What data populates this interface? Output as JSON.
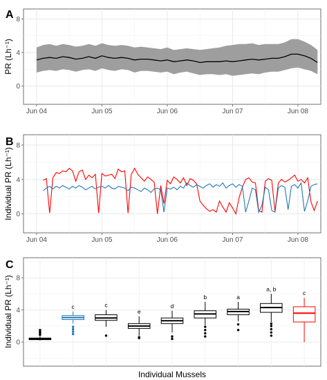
{
  "chart_data": [
    {
      "panel_label": "A",
      "type": "area",
      "ylabel": "PR (Lh⁻¹)",
      "ylim": [
        -2.2,
        9.2
      ],
      "yticks": [
        0,
        4,
        8
      ],
      "xticks": [
        "Jun 04",
        "Jun 05",
        "Jun 06",
        "Jun 07",
        "Jun 08"
      ],
      "xlim": [
        -0.2,
        4.35
      ],
      "grid": true,
      "series": [
        {
          "kind": "band",
          "color": "#999999",
          "x": [
            0,
            0.1,
            0.2,
            0.3,
            0.4,
            0.5,
            0.6,
            0.7,
            0.8,
            0.9,
            1.0,
            1.1,
            1.2,
            1.3,
            1.4,
            1.5,
            1.6,
            1.7,
            1.8,
            1.9,
            2.0,
            2.1,
            2.2,
            2.3,
            2.4,
            2.5,
            2.6,
            2.7,
            2.8,
            2.9,
            3.0,
            3.1,
            3.2,
            3.3,
            3.4,
            3.5,
            3.6,
            3.7,
            3.8,
            3.9,
            4.0,
            4.1,
            4.2,
            4.3
          ],
          "lower": [
            1.6,
            1.8,
            1.9,
            1.8,
            2.0,
            1.9,
            1.7,
            1.9,
            2.0,
            1.8,
            2.1,
            1.9,
            1.8,
            2.0,
            1.9,
            1.6,
            1.8,
            1.8,
            1.7,
            1.6,
            1.7,
            1.4,
            1.6,
            1.7,
            1.5,
            1.3,
            1.4,
            1.4,
            1.3,
            1.4,
            1.2,
            1.3,
            1.4,
            1.5,
            1.4,
            1.6,
            1.7,
            1.7,
            1.9,
            2.1,
            2.2,
            2.0,
            1.8,
            1.4
          ],
          "upper": [
            4.6,
            4.9,
            5.0,
            4.8,
            5.0,
            4.9,
            4.7,
            4.8,
            5.0,
            4.8,
            5.1,
            4.9,
            4.8,
            4.9,
            4.8,
            4.6,
            4.7,
            4.6,
            4.5,
            4.4,
            4.6,
            4.3,
            4.4,
            4.5,
            4.4,
            4.3,
            4.4,
            4.5,
            4.6,
            4.8,
            4.9,
            5.0,
            5.0,
            5.1,
            4.9,
            5.0,
            5.0,
            5.0,
            5.2,
            5.6,
            5.6,
            5.3,
            4.9,
            4.3
          ]
        },
        {
          "kind": "line",
          "color": "#000000",
          "x": [
            0,
            0.1,
            0.2,
            0.3,
            0.4,
            0.5,
            0.6,
            0.7,
            0.8,
            0.9,
            1.0,
            1.1,
            1.2,
            1.3,
            1.4,
            1.5,
            1.6,
            1.7,
            1.8,
            1.9,
            2.0,
            2.1,
            2.2,
            2.3,
            2.4,
            2.5,
            2.6,
            2.7,
            2.8,
            2.9,
            3.0,
            3.1,
            3.2,
            3.3,
            3.4,
            3.5,
            3.6,
            3.7,
            3.8,
            3.9,
            4.0,
            4.1,
            4.2,
            4.3
          ],
          "y": [
            3.1,
            3.3,
            3.4,
            3.3,
            3.5,
            3.4,
            3.2,
            3.3,
            3.5,
            3.3,
            3.6,
            3.4,
            3.3,
            3.4,
            3.3,
            3.1,
            3.2,
            3.2,
            3.1,
            3.0,
            3.1,
            2.9,
            3.0,
            3.1,
            3.0,
            2.8,
            2.9,
            2.9,
            2.9,
            3.0,
            2.9,
            3.0,
            3.1,
            3.2,
            3.1,
            3.2,
            3.3,
            3.3,
            3.5,
            3.8,
            3.8,
            3.6,
            3.3,
            2.8
          ]
        }
      ]
    },
    {
      "panel_label": "B",
      "type": "line",
      "ylabel": "Individual PR (Lh⁻¹)",
      "ylim": [
        -2.2,
        9.2
      ],
      "yticks": [
        0,
        4,
        8
      ],
      "xticks": [
        "Jun 04",
        "Jun 05",
        "Jun 06",
        "Jun 07",
        "Jun 08"
      ],
      "xlim": [
        -0.2,
        4.35
      ],
      "grid": true,
      "series": [
        {
          "color": "#ff0000",
          "x": [
            0.1,
            0.15,
            0.2,
            0.25,
            0.3,
            0.35,
            0.4,
            0.45,
            0.5,
            0.55,
            0.6,
            0.65,
            0.7,
            0.75,
            0.8,
            0.85,
            0.9,
            0.95,
            1.0,
            1.05,
            1.1,
            1.15,
            1.2,
            1.25,
            1.3,
            1.35,
            1.4,
            1.45,
            1.5,
            1.55,
            1.6,
            1.65,
            1.7,
            1.75,
            1.8,
            1.85,
            1.9,
            1.95,
            2.0,
            2.05,
            2.1,
            2.15,
            2.2,
            2.25,
            2.3,
            2.35,
            2.4,
            2.45,
            2.5,
            2.55,
            2.6,
            2.65,
            2.7,
            2.75,
            2.8,
            2.85,
            2.9,
            2.95,
            3.0,
            3.05,
            3.1,
            3.15,
            3.2,
            3.25,
            3.3,
            3.35,
            3.4,
            3.45,
            3.5,
            3.55,
            3.6,
            3.65,
            3.7,
            3.75,
            3.8,
            3.85,
            3.9,
            3.95,
            4.0,
            4.05,
            4.1,
            4.15,
            4.2,
            4.25,
            4.3
          ],
          "y": [
            3.9,
            4.1,
            0.1,
            4.2,
            4.8,
            4.7,
            5.0,
            4.9,
            5.3,
            5.0,
            3.8,
            4.9,
            5.1,
            4.0,
            4.5,
            4.2,
            4.6,
            0.1,
            4.7,
            4.4,
            4.5,
            4.6,
            4.1,
            5.2,
            4.9,
            5.0,
            0.1,
            4.6,
            5.3,
            4.6,
            4.2,
            3.8,
            4.3,
            4.0,
            3.7,
            0.0,
            3.3,
            1.2,
            3.9,
            3.5,
            4.3,
            4.0,
            3.6,
            4.2,
            3.3,
            4.1,
            3.9,
            3.5,
            1.5,
            1.0,
            0.6,
            0.3,
            0.5,
            0.2,
            1.5,
            0.8,
            0.2,
            1.3,
            0.7,
            0.0,
            1.9,
            3.1,
            4.0,
            4.2,
            3.7,
            3.6,
            0.4,
            0.2,
            3.8,
            4.1,
            3.9,
            0.3,
            3.6,
            4.0,
            3.7,
            3.9,
            4.2,
            4.5,
            3.8,
            4.0,
            3.6,
            4.2,
            1.4,
            0.4,
            1.5
          ]
        },
        {
          "color": "#1f77b4",
          "x": [
            0.1,
            0.15,
            0.2,
            0.25,
            0.3,
            0.35,
            0.4,
            0.45,
            0.5,
            0.55,
            0.6,
            0.65,
            0.7,
            0.75,
            0.8,
            0.85,
            0.9,
            0.95,
            1.0,
            1.05,
            1.1,
            1.15,
            1.2,
            1.25,
            1.3,
            1.35,
            1.4,
            1.45,
            1.5,
            1.55,
            1.6,
            1.65,
            1.7,
            1.75,
            1.8,
            1.85,
            1.9,
            1.95,
            2.0,
            2.05,
            2.1,
            2.15,
            2.2,
            2.25,
            2.3,
            2.35,
            2.4,
            2.45,
            2.5,
            2.55,
            2.6,
            2.65,
            2.7,
            2.75,
            2.8,
            2.85,
            2.9,
            2.95,
            3.0,
            3.05,
            3.1,
            3.15,
            3.2,
            3.25,
            3.3,
            3.35,
            3.4,
            3.45,
            3.5,
            3.55,
            3.6,
            3.65,
            3.7,
            3.75,
            3.8,
            3.85,
            3.9,
            3.95,
            4.0,
            4.05,
            4.1,
            4.15,
            4.2,
            4.25,
            4.3
          ],
          "y": [
            2.7,
            3.0,
            3.2,
            2.9,
            3.2,
            3.0,
            3.3,
            3.1,
            2.9,
            3.2,
            3.0,
            3.3,
            3.1,
            2.8,
            3.0,
            3.2,
            2.9,
            3.1,
            3.2,
            3.0,
            3.3,
            3.0,
            2.9,
            3.2,
            3.1,
            3.0,
            2.7,
            3.1,
            3.0,
            2.8,
            2.6,
            3.0,
            2.8,
            2.5,
            2.9,
            3.0,
            2.8,
            0.2,
            3.0,
            2.9,
            3.1,
            2.8,
            3.2,
            3.0,
            3.6,
            3.3,
            3.1,
            3.4,
            3.2,
            3.0,
            3.3,
            3.5,
            3.1,
            3.4,
            3.2,
            3.6,
            3.0,
            3.3,
            3.5,
            3.1,
            3.4,
            3.2,
            0.2,
            1.5,
            3.0,
            2.8,
            0.2,
            1.0,
            3.1,
            2.8,
            0.4,
            0.2,
            3.0,
            3.3,
            3.1,
            0.5,
            3.2,
            3.4,
            3.0,
            3.6,
            0.3,
            1.5,
            3.2,
            3.4,
            3.5
          ]
        }
      ]
    },
    {
      "panel_label": "C",
      "type": "box",
      "ylabel": "Individual PR (Lh⁻¹)",
      "xlabel": "Individual Mussels",
      "ylim": [
        -3.0,
        10.5
      ],
      "yticks": [
        0,
        4,
        8
      ],
      "grid": true,
      "boxes": [
        {
          "label": "*",
          "color": "#000000",
          "q1": 0.3,
          "median": 0.4,
          "q3": 0.5,
          "wmin": 0.2,
          "wmax": 0.7,
          "outliers": [
            0.9,
            1.1,
            1.3,
            1.5
          ]
        },
        {
          "label": "c",
          "color": "#1f77b4",
          "q1": 2.8,
          "median": 3.05,
          "q3": 3.3,
          "wmin": 2.3,
          "wmax": 3.8,
          "outliers": [
            1.0,
            1.3,
            1.6,
            1.9
          ]
        },
        {
          "label": "c",
          "color": "#000000",
          "q1": 2.7,
          "median": 3.0,
          "q3": 3.4,
          "wmin": 1.9,
          "wmax": 4.0,
          "outliers": [
            0.8
          ]
        },
        {
          "label": "e",
          "color": "#000000",
          "q1": 1.7,
          "median": 2.0,
          "q3": 2.3,
          "wmin": 0.8,
          "wmax": 3.2,
          "outliers": [
            0.5,
            0.6
          ]
        },
        {
          "label": "d",
          "color": "#000000",
          "q1": 2.3,
          "median": 2.65,
          "q3": 3.0,
          "wmin": 1.2,
          "wmax": 3.9,
          "outliers": [
            0.4,
            0.7
          ]
        },
        {
          "label": "b",
          "color": "#000000",
          "q1": 3.0,
          "median": 3.5,
          "q3": 3.9,
          "wmin": 2.1,
          "wmax": 5.0,
          "outliers": [
            0.7,
            1.1,
            1.5,
            1.9
          ]
        },
        {
          "label": "a",
          "color": "#000000",
          "q1": 3.4,
          "median": 3.8,
          "q3": 4.1,
          "wmin": 2.6,
          "wmax": 5.0,
          "outliers": [
            1.5,
            2.2
          ]
        },
        {
          "label": "a, b",
          "color": "#000000",
          "q1": 3.7,
          "median": 4.3,
          "q3": 4.8,
          "wmin": 2.5,
          "wmax": 6.0,
          "outliers": [
            0.8,
            1.2,
            1.6,
            2.0,
            2.3
          ]
        },
        {
          "label": "c",
          "color": "#ff0000",
          "q1": 2.5,
          "median": 3.6,
          "q3": 4.4,
          "wmin": 0.0,
          "wmax": 5.5,
          "outliers": []
        }
      ]
    }
  ]
}
